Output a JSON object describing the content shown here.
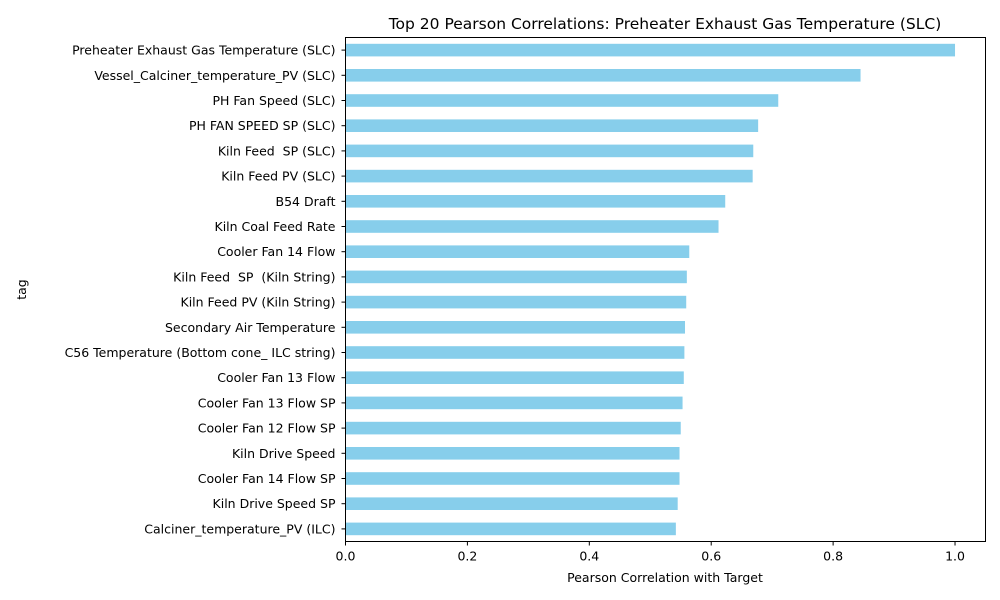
{
  "chart_data": {
    "type": "bar",
    "orientation": "horizontal",
    "title": "Top 20 Pearson Correlations: Preheater Exhaust Gas Temperature (SLC)",
    "xlabel": "Pearson Correlation with Target",
    "ylabel": "tag",
    "xlim": [
      0.0,
      1.05
    ],
    "xticks": [
      "0.0",
      "0.2",
      "0.4",
      "0.6",
      "0.8",
      "1.0"
    ],
    "grid": false,
    "bar_color": "#87ceeb",
    "categories": [
      "Preheater Exhaust Gas Temperature (SLC)",
      "Vessel_Calciner_temperature_PV (SLC)",
      "PH Fan Speed (SLC)",
      "PH FAN SPEED SP (SLC)",
      "Kiln Feed  SP (SLC)",
      "Kiln Feed PV (SLC)",
      "B54 Draft",
      "Kiln Coal Feed Rate",
      "Cooler Fan 14 Flow",
      "Kiln Feed  SP  (Kiln String)",
      "Kiln Feed PV (Kiln String)",
      "Secondary Air Temperature",
      "C56 Temperature (Bottom cone_ ILC string)",
      "Cooler Fan 13 Flow",
      "Cooler Fan 13 Flow SP",
      "Cooler Fan 12 Flow SP",
      "Kiln Drive Speed",
      "Cooler Fan 14 Flow SP",
      "Kiln Drive Speed SP",
      "Calciner_temperature_PV (ILC)"
    ],
    "values": [
      1.0,
      0.845,
      0.71,
      0.677,
      0.669,
      0.668,
      0.623,
      0.612,
      0.564,
      0.56,
      0.559,
      0.557,
      0.556,
      0.555,
      0.553,
      0.55,
      0.548,
      0.548,
      0.545,
      0.542
    ]
  }
}
